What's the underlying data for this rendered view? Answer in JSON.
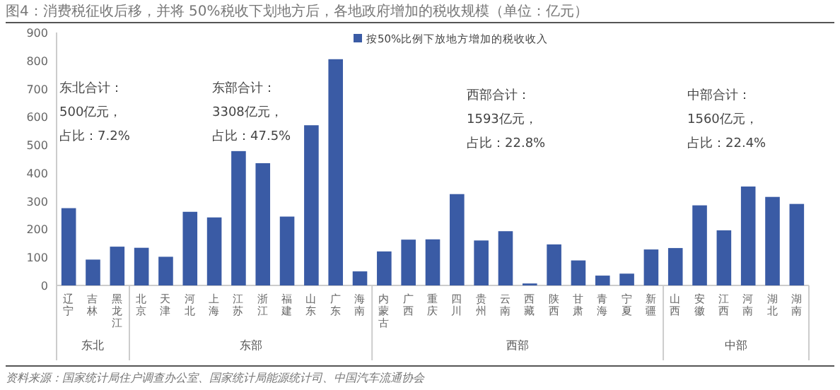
{
  "chart_data": {
    "type": "bar",
    "title": "图4：消费税征收后移，并将 50%税收下划地方后，各地政府增加的税收规模（单位：亿元）",
    "categories": [
      "辽宁",
      "吉林",
      "黑龙江",
      "北京",
      "天津",
      "河北",
      "上海",
      "江苏",
      "浙江",
      "福建",
      "山东",
      "广东",
      "海南",
      "内蒙古",
      "广西",
      "重庆",
      "四川",
      "贵州",
      "云南",
      "西藏",
      "陕西",
      "甘肃",
      "青海",
      "宁夏",
      "新疆",
      "山西",
      "安徽",
      "江西",
      "河南",
      "湖北",
      "湖南"
    ],
    "series": [
      {
        "name": "按50%比例下放地方增加的税收收入",
        "color": "#3a5ba5",
        "values": [
          275,
          92,
          138,
          134,
          102,
          262,
          242,
          478,
          435,
          245,
          570,
          805,
          50,
          121,
          163,
          164,
          325,
          160,
          193,
          7,
          146,
          89,
          35,
          42,
          128,
          133,
          285,
          196,
          352,
          315,
          290
        ]
      }
    ],
    "ylim": [
      0,
      900
    ],
    "yticks": [
      0,
      100,
      200,
      300,
      400,
      500,
      600,
      700,
      800,
      900
    ],
    "grid": false,
    "legend": "top",
    "annotations": [
      "东北合计：",
      "500亿元，",
      "占比：7.2%",
      "东部合计：",
      "3308亿元，",
      "占比：47.5%",
      "西部合计：",
      "1593亿元，",
      "占比：22.8%",
      "中部合计：",
      "1560亿元，",
      "占比：22.4%",
      "东北",
      "东部",
      "西部",
      "中部",
      "资料来源：国家统计局住户调查办公室、国家统计局能源统计司、中国汽车流通协会"
    ]
  }
}
